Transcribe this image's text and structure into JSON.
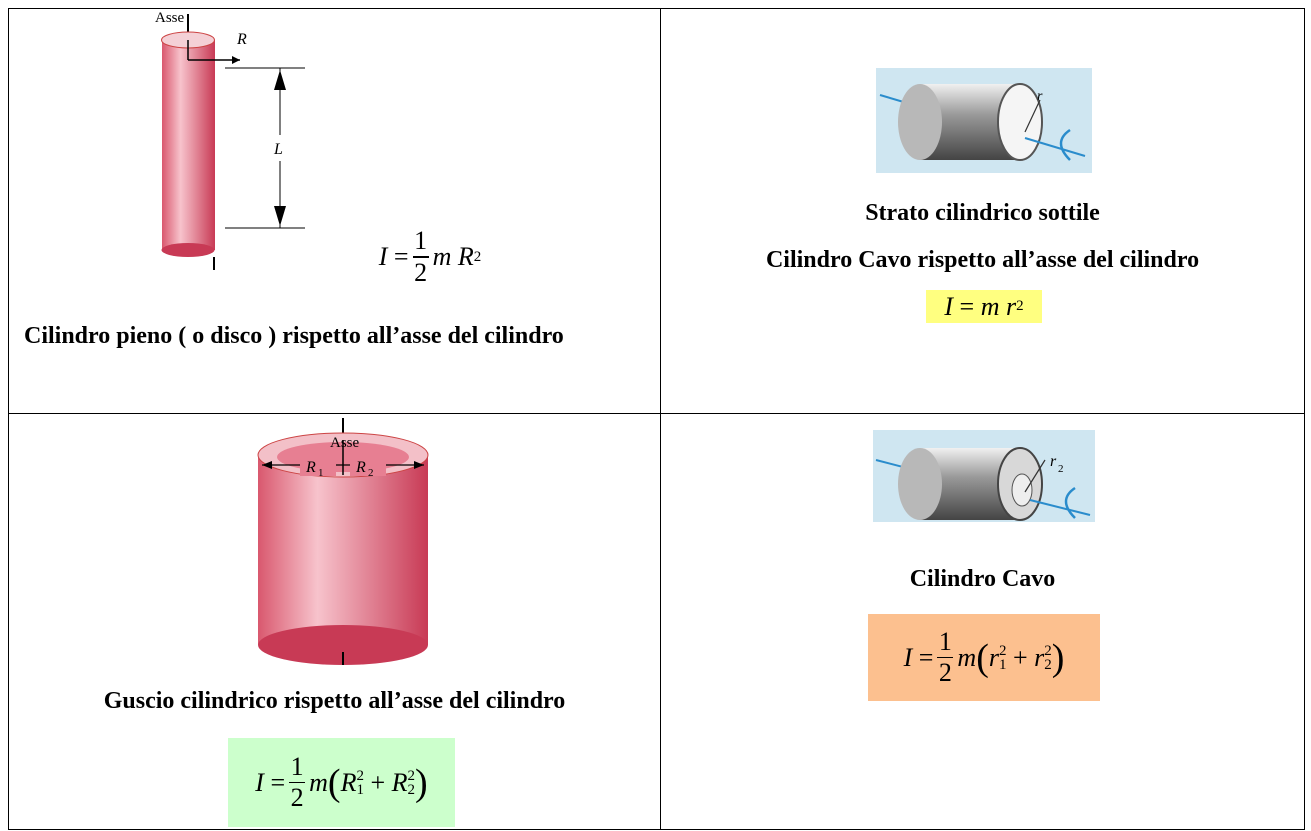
{
  "table": {
    "cells": [
      {
        "figure": {
          "axis": "Asse",
          "radius": "R",
          "length": "L"
        },
        "formula": {
          "lhs": "I",
          "eq": "=",
          "num": "1",
          "den": "2",
          "factor": "m",
          "var": "R",
          "exp": "2"
        },
        "caption": "Cilindro pieno ( o disco ) rispetto all’asse del cilindro"
      },
      {
        "figure": {
          "radius": "r"
        },
        "captions": [
          "Strato cilindrico sottile",
          "Cilindro Cavo rispetto all’asse del cilindro"
        ],
        "formula": {
          "lhs": "I",
          "eq": "=",
          "factor": "m",
          "var": "r",
          "exp": "2"
        }
      },
      {
        "figure": {
          "axis": "Asse",
          "radius_1": {
            "letter": "R",
            "sub": "1"
          },
          "radius_2": {
            "letter": "R",
            "sub": "2"
          }
        },
        "caption": "Guscio cilindrico rispetto all’asse del cilindro",
        "formula": {
          "lhs": "I",
          "eq": "=",
          "num": "1",
          "den": "2",
          "factor": "m",
          "open": "(",
          "plus": "+",
          "close": ")",
          "terms": [
            {
              "letter": "R",
              "sub": "1",
              "exp": "2"
            },
            {
              "letter": "R",
              "sub": "2",
              "exp": "2"
            }
          ]
        }
      },
      {
        "figure": {
          "radius_2": {
            "letter": "r",
            "sub": "2"
          }
        },
        "caption": "Cilindro Cavo",
        "formula": {
          "lhs": "I",
          "eq": "=",
          "num": "1",
          "den": "2",
          "factor": "m",
          "open": "(",
          "plus": "+",
          "close": ")",
          "terms": [
            {
              "letter": "r",
              "sub": "1",
              "exp": "2"
            },
            {
              "letter": "r",
              "sub": "2",
              "exp": "2"
            }
          ]
        }
      }
    ]
  }
}
